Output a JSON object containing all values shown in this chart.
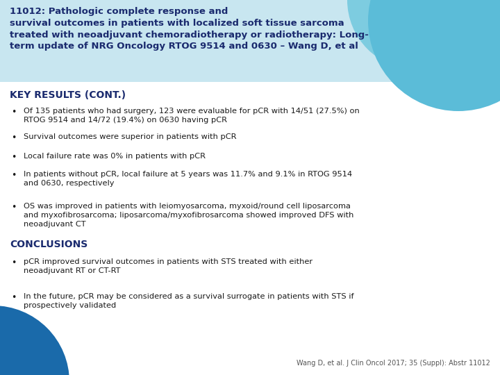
{
  "title_lines": [
    "11012: Pathologic complete response and",
    "survival outcomes in patients with localized soft tissue sarcoma",
    "treated with neoadjuvant chemoradiotherapy or radiotherapy: Long-",
    "term update of NRG Oncology RTOG 9514 and 0630 – Wang D, et al"
  ],
  "section1_heading": "KEY RESULTS (CONT.)",
  "section1_bullets": [
    "Of 135 patients who had surgery, 123 were evaluable for pCR with 14/51 (27.5%) on\nRTOG 9514 and 14/72 (19.4%) on 0630 having pCR",
    "Survival outcomes were superior in patients with pCR",
    "Local failure rate was 0% in patients with pCR",
    "In patients without pCR, local failure at 5 years was 11.7% and 9.1% in RTOG 9514\nand 0630, respectively",
    "OS was improved in patients with leiomyosarcoma, myxoid/round cell liposarcoma\nand myxofibrosarcoma; liposarcoma/myxofibrosarcoma showed improved DFS with\nneoadjuvant CT"
  ],
  "section2_heading": "CONCLUSIONS",
  "section2_bullets": [
    "pCR improved survival outcomes in patients with STS treated with either\nneoadjuvant RT or CT-RT",
    "In the future, pCR may be considered as a survival surrogate in patients with STS if\nprospectively validated"
  ],
  "footer": "Wang D, et al. J Clin Oncol 2017; 35 (Suppl): Abstr 11012",
  "bg_color": "#ffffff",
  "title_bg_color": "#c8e6f0",
  "text_color": "#1a1a2e",
  "heading_color": "#1a2a6e",
  "title_color": "#1a2a6e",
  "teal_color": "#5bbcd8",
  "teal_light": "#7dcce0",
  "dark_blue": "#1a6aaa",
  "bullet_color": "#1a1a1a",
  "title_fontsize": 9.5,
  "body_fontsize": 8.2,
  "heading_fontsize": 10.0,
  "footer_fontsize": 7.0
}
